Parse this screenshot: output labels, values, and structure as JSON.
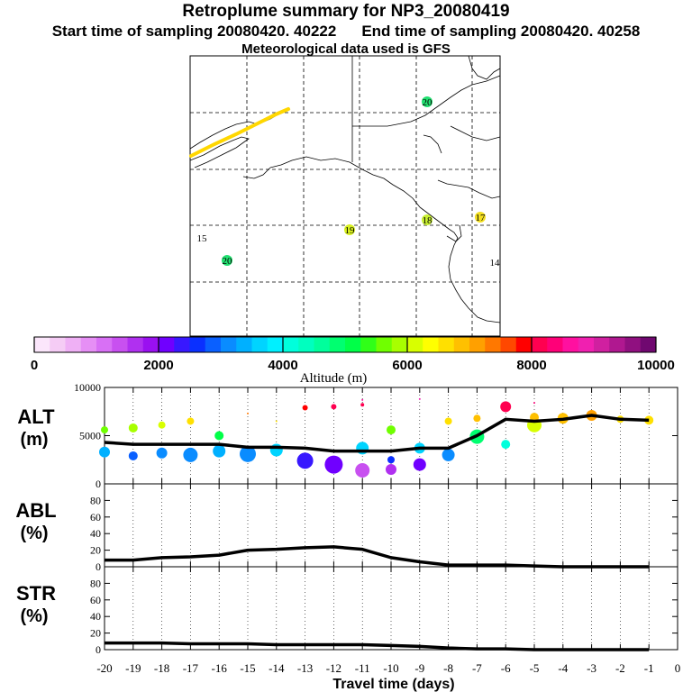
{
  "title": "Retroplume summary for NP3_20080419",
  "start_label": "Start time of sampling 20080420. 40222",
  "end_label": "End time of sampling 20080420. 40258",
  "met_label": "Meteorological data used is GFS",
  "map": {
    "labels": [
      {
        "text": "20",
        "color": "#22e070"
      },
      {
        "text": "19",
        "color": "#d8f020"
      },
      {
        "text": "18",
        "color": "#c8f030"
      },
      {
        "text": "17",
        "color": "#f4e020"
      },
      {
        "text": "15",
        "color": "#ffffff"
      },
      {
        "text": "20",
        "color": "#22e070"
      },
      {
        "text": "14",
        "color": "#ffffff"
      }
    ]
  },
  "colorbar": {
    "title": "Altitude (m)",
    "tick_labels": [
      "0",
      "2000",
      "4000",
      "6000",
      "8000",
      "10000"
    ],
    "colors": [
      "#fbe6fb",
      "#f5ccf5",
      "#efb0f5",
      "#e68ff5",
      "#d870f5",
      "#c850f0",
      "#b030f0",
      "#9a10f0",
      "#7000ff",
      "#3818ff",
      "#0a30ff",
      "#0a60ff",
      "#0a8cff",
      "#00b0ff",
      "#00d4ff",
      "#00f0ff",
      "#00ffdc",
      "#00ffbf",
      "#00ff9c",
      "#00ff70",
      "#00ff48",
      "#30ff18",
      "#70ff00",
      "#a8ff00",
      "#d8ff00",
      "#ffff00",
      "#ffe000",
      "#ffc000",
      "#ffa000",
      "#ff7800",
      "#ff4800",
      "#ff0000",
      "#ff0050",
      "#ff0078",
      "#ff10a0",
      "#f020b0",
      "#d020a0",
      "#b01890",
      "#901080",
      "#700870"
    ]
  },
  "chart_data": [
    {
      "type": "line",
      "title": "",
      "ylabel": "ALT (m)",
      "ylabel_line1": "ALT",
      "ylabel_line2": "(m)",
      "ytick_labels": [
        "0",
        "5000",
        "10000"
      ],
      "ylim": [
        0,
        10000
      ],
      "x": [
        -20,
        -19,
        -18,
        -17,
        -16,
        -15,
        -14,
        -13,
        -12,
        -11,
        -10,
        -9,
        -8,
        -7,
        -6,
        -5,
        -4,
        -3,
        -2,
        -1
      ],
      "values": [
        4300,
        4100,
        4100,
        4100,
        4100,
        3800,
        3800,
        3700,
        3400,
        3400,
        3400,
        3700,
        3700,
        5000,
        6700,
        6500,
        6700,
        7100,
        6700,
        6600
      ],
      "scatter": [
        {
          "x": -20,
          "y": 3300,
          "s": 6
        },
        {
          "x": -20,
          "y": 5600,
          "s": 4
        },
        {
          "x": -19,
          "y": 2900,
          "s": 5
        },
        {
          "x": -19,
          "y": 5800,
          "s": 5
        },
        {
          "x": -18,
          "y": 3200,
          "s": 6
        },
        {
          "x": -18,
          "y": 6100,
          "s": 4
        },
        {
          "x": -17,
          "y": 3000,
          "s": 8
        },
        {
          "x": -17,
          "y": 6500,
          "s": 4
        },
        {
          "x": -16,
          "y": 3400,
          "s": 7
        },
        {
          "x": -16,
          "y": 5000,
          "s": 5
        },
        {
          "x": -15,
          "y": 3100,
          "s": 9
        },
        {
          "x": -15,
          "y": 7300,
          "s": 1
        },
        {
          "x": -14,
          "y": 3500,
          "s": 7
        },
        {
          "x": -14,
          "y": 6500,
          "s": 1
        },
        {
          "x": -13,
          "y": 2400,
          "s": 9
        },
        {
          "x": -13,
          "y": 7900,
          "s": 3
        },
        {
          "x": -12,
          "y": 2000,
          "s": 10
        },
        {
          "x": -12,
          "y": 8000,
          "s": 3
        },
        {
          "x": -11,
          "y": 1400,
          "s": 8
        },
        {
          "x": -11,
          "y": 3700,
          "s": 7
        },
        {
          "x": -11,
          "y": 8200,
          "s": 2
        },
        {
          "x": -11,
          "y": 8700,
          "s": 1
        },
        {
          "x": -10,
          "y": 1500,
          "s": 6
        },
        {
          "x": -10,
          "y": 2500,
          "s": 4
        },
        {
          "x": -10,
          "y": 5600,
          "s": 5
        },
        {
          "x": -9,
          "y": 2000,
          "s": 7
        },
        {
          "x": -9,
          "y": 3700,
          "s": 6
        },
        {
          "x": -9,
          "y": 8800,
          "s": 1
        },
        {
          "x": -8,
          "y": 3000,
          "s": 7
        },
        {
          "x": -8,
          "y": 6500,
          "s": 4
        },
        {
          "x": -7,
          "y": 4900,
          "s": 8
        },
        {
          "x": -7,
          "y": 6800,
          "s": 4
        },
        {
          "x": -6,
          "y": 4100,
          "s": 5
        },
        {
          "x": -6,
          "y": 8000,
          "s": 6
        },
        {
          "x": -5,
          "y": 6100,
          "s": 8
        },
        {
          "x": -5,
          "y": 6900,
          "s": 5
        },
        {
          "x": -5,
          "y": 8400,
          "s": 1
        },
        {
          "x": -4,
          "y": 6800,
          "s": 6
        },
        {
          "x": -3,
          "y": 7100,
          "s": 6
        },
        {
          "x": -2,
          "y": 6700,
          "s": 4
        },
        {
          "x": -1,
          "y": 6600,
          "s": 5
        }
      ]
    },
    {
      "type": "line",
      "ylabel": "ABL (%)",
      "ylabel_line1": "ABL",
      "ylabel_line2": "(%)",
      "ytick_labels": [
        "0",
        "20",
        "40",
        "60",
        "80"
      ],
      "ylim": [
        0,
        100
      ],
      "x": [
        -20,
        -19,
        -18,
        -17,
        -16,
        -15,
        -14,
        -13,
        -12,
        -11,
        -10,
        -9,
        -8,
        -7,
        -6,
        -5,
        -4,
        -3,
        -2,
        -1
      ],
      "values": [
        8,
        8,
        11,
        12,
        14,
        20,
        21,
        23,
        24,
        21,
        11,
        6,
        2,
        2,
        2,
        1,
        0,
        0,
        0,
        0
      ]
    },
    {
      "type": "line",
      "ylabel": "STR (%)",
      "ylabel_line1": "STR",
      "ylabel_line2": "(%)",
      "ytick_labels": [
        "0",
        "20",
        "40",
        "60",
        "80"
      ],
      "ylim": [
        0,
        100
      ],
      "x": [
        -20,
        -19,
        -18,
        -17,
        -16,
        -15,
        -14,
        -13,
        -12,
        -11,
        -10,
        -9,
        -8,
        -7,
        -6,
        -5,
        -4,
        -3,
        -2,
        -1
      ],
      "values": [
        8,
        8,
        8,
        7,
        7,
        7,
        6,
        6,
        6,
        6,
        5,
        4,
        2,
        1,
        1,
        0,
        0,
        0,
        0,
        0
      ]
    }
  ],
  "x_axis": {
    "label": "Travel time (days)",
    "tick_labels": [
      "-20",
      "-19",
      "-18",
      "-17",
      "-16",
      "-15",
      "-14",
      "-13",
      "-12",
      "-11",
      "-10",
      "-9",
      "-8",
      "-7",
      "-6",
      "-5",
      "-4",
      "-3",
      "-2",
      "-1",
      "0"
    ]
  }
}
